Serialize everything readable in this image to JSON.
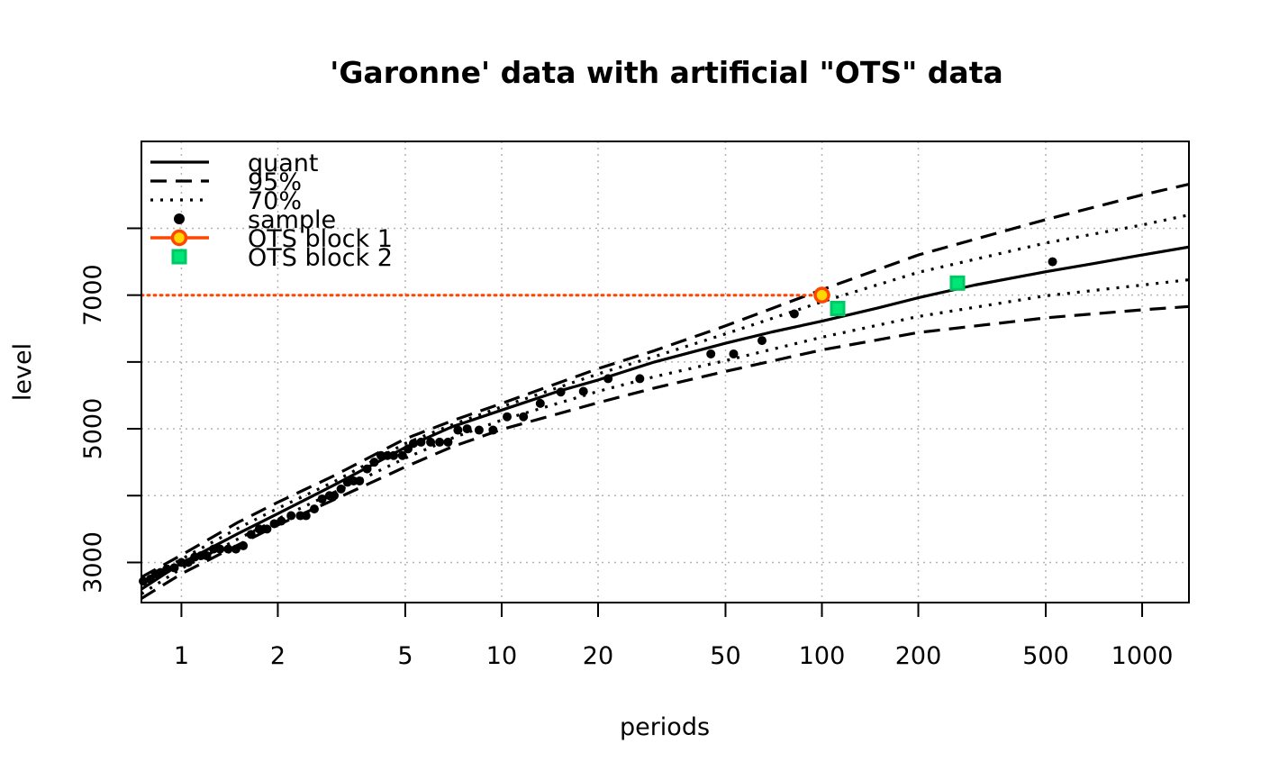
{
  "chart_data": {
    "type": "line",
    "title": "'Garonne' data with artificial \"OTS\" data",
    "xlabel": "periods",
    "ylabel": "level",
    "x_scale": "log",
    "xlim": [
      0.75,
      1400
    ],
    "ylim": [
      2400,
      9300
    ],
    "x_ticks": [
      1,
      2,
      5,
      10,
      20,
      50,
      100,
      200,
      500,
      1000
    ],
    "x_tick_labels": [
      "1",
      "2",
      "5",
      "10",
      "20",
      "50",
      "100",
      "200",
      "500",
      "1000"
    ],
    "y_ticks": [
      3000,
      4000,
      5000,
      6000,
      7000,
      8000
    ],
    "y_tick_labels": [
      "3000",
      "",
      "5000",
      "",
      "7000",
      ""
    ],
    "grid": true,
    "legend": {
      "placement": "top-left",
      "entries": [
        "quant",
        "95%",
        "70%",
        "sample",
        "OTS block 1",
        "OTS block 2"
      ]
    },
    "series": [
      {
        "name": "quant",
        "style": "solid",
        "color": "#000000",
        "x": [
          0.75,
          1,
          1.5,
          2,
          3,
          5,
          7,
          10,
          15,
          20,
          30,
          50,
          70,
          100,
          150,
          200,
          300,
          500,
          700,
          1000,
          1400
        ],
        "y": [
          2600,
          2990,
          3430,
          3730,
          4160,
          4720,
          5030,
          5280,
          5560,
          5730,
          6000,
          6280,
          6450,
          6610,
          6810,
          6960,
          7150,
          7350,
          7470,
          7600,
          7720
        ]
      },
      {
        "name": "95% upper",
        "style": "dashed",
        "color": "#000000",
        "x": [
          0.75,
          1,
          1.5,
          2,
          3,
          5,
          7,
          10,
          20,
          30,
          50,
          100,
          200,
          500,
          1000,
          1400
        ],
        "y": [
          2780,
          3110,
          3600,
          3900,
          4300,
          4850,
          5120,
          5380,
          5900,
          6170,
          6540,
          7080,
          7600,
          8130,
          8500,
          8660
        ]
      },
      {
        "name": "95% lower",
        "style": "dashed",
        "color": "#000000",
        "x": [
          0.75,
          1,
          1.5,
          2,
          3,
          5,
          7,
          10,
          20,
          30,
          50,
          100,
          200,
          500,
          1000,
          1400
        ],
        "y": [
          2460,
          2830,
          3260,
          3560,
          3940,
          4430,
          4730,
          4990,
          5390,
          5610,
          5860,
          6180,
          6440,
          6660,
          6780,
          6830
        ]
      },
      {
        "name": "70% upper",
        "style": "dotted",
        "color": "#000000",
        "x": [
          0.75,
          1,
          1.5,
          2,
          3,
          5,
          7,
          10,
          20,
          30,
          50,
          100,
          200,
          500,
          1000,
          1400
        ],
        "y": [
          2710,
          3050,
          3510,
          3810,
          4210,
          4780,
          5060,
          5330,
          5820,
          6080,
          6420,
          6900,
          7340,
          7780,
          8050,
          8200
        ]
      },
      {
        "name": "70% lower",
        "style": "dotted",
        "color": "#000000",
        "x": [
          0.75,
          1,
          1.5,
          2,
          3,
          5,
          7,
          10,
          20,
          30,
          50,
          100,
          200,
          500,
          1000,
          1400
        ],
        "y": [
          2530,
          2910,
          3350,
          3650,
          4050,
          4560,
          4860,
          5130,
          5560,
          5780,
          6020,
          6370,
          6680,
          6990,
          7150,
          7230
        ]
      },
      {
        "name": "OTS threshold",
        "style": "dotted",
        "color": "#ff4500",
        "x": [
          0.75,
          100
        ],
        "y": [
          7000,
          7000
        ]
      }
    ],
    "sample": {
      "name": "sample",
      "color": "#000000",
      "x": [
        0.76,
        0.8,
        0.83,
        0.86,
        0.9,
        0.95,
        1.0,
        1.05,
        1.1,
        1.15,
        1.2,
        1.26,
        1.32,
        1.4,
        1.48,
        1.56,
        1.65,
        1.75,
        1.85,
        1.95,
        2.05,
        2.2,
        2.35,
        2.45,
        2.6,
        2.75,
        2.9,
        3.0,
        3.15,
        3.3,
        3.45,
        3.6,
        3.8,
        4.0,
        4.2,
        4.4,
        4.6,
        4.9,
        5.1,
        5.3,
        5.6,
        6.0,
        6.4,
        6.8,
        7.3,
        7.8,
        8.5,
        9.4,
        10.4,
        11.7,
        13.2,
        15.3,
        18.0,
        21.5,
        27.0,
        45.0,
        53.0,
        65.0,
        82.0,
        525.0
      ],
      "y": [
        2720,
        2750,
        2830,
        2850,
        2900,
        2920,
        3000,
        3000,
        3080,
        3100,
        3100,
        3200,
        3200,
        3200,
        3200,
        3250,
        3420,
        3500,
        3500,
        3580,
        3620,
        3700,
        3700,
        3700,
        3800,
        3950,
        4000,
        4000,
        4100,
        4200,
        4220,
        4220,
        4400,
        4500,
        4600,
        4600,
        4600,
        4600,
        4700,
        4780,
        4800,
        4800,
        4800,
        4800,
        4980,
        5000,
        4980,
        4980,
        5180,
        5180,
        5380,
        5550,
        5560,
        5750,
        5750,
        6120,
        6120,
        6320,
        6720,
        7500
      ]
    },
    "ots_block_1": {
      "name": "OTS block 1",
      "x": [
        100
      ],
      "y": [
        7000
      ],
      "fill": "#ffd700",
      "stroke": "#ff4500"
    },
    "ots_block_2": {
      "name": "OTS block 2",
      "x": [
        112,
        265
      ],
      "y": [
        6800,
        7180
      ],
      "fill": "#00e676",
      "stroke": "#00c864"
    }
  }
}
